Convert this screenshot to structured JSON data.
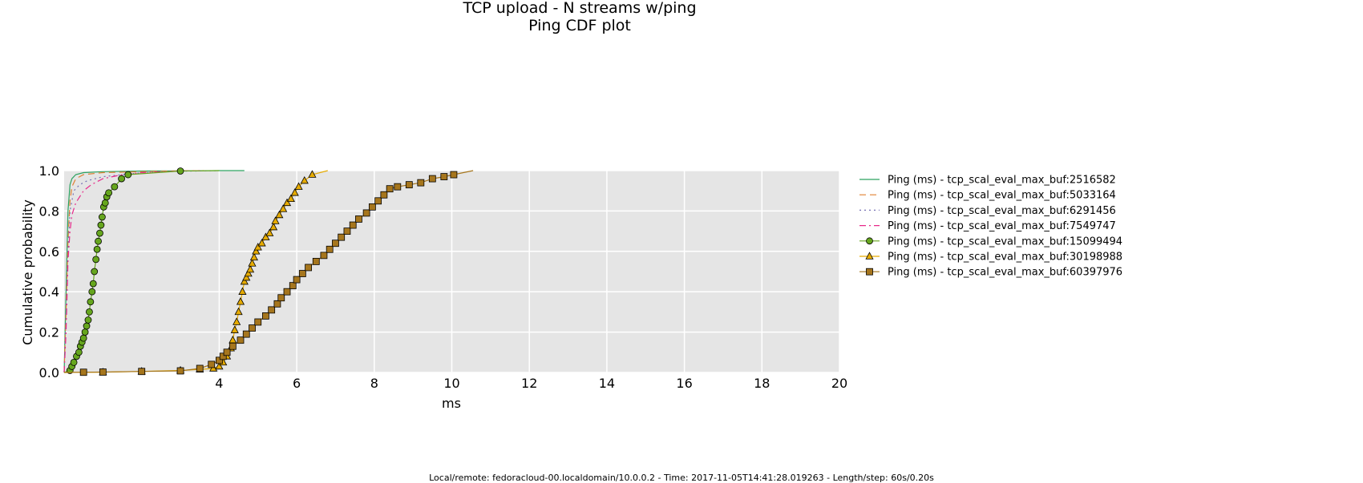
{
  "chart_data": {
    "type": "line",
    "title": "TCP upload - N streams w/ping",
    "subtitle": "Ping CDF plot",
    "xlabel": "ms",
    "ylabel": "Cumulative probability",
    "xlim": [
      0,
      20
    ],
    "ylim": [
      0,
      1
    ],
    "x_ticks": [
      "4",
      "6",
      "8",
      "10",
      "12",
      "14",
      "16",
      "18",
      "20"
    ],
    "y_ticks": [
      "0.0",
      "0.2",
      "0.4",
      "0.6",
      "0.8",
      "1.0"
    ],
    "grid": true,
    "legend_position": "right",
    "series": [
      {
        "name": "Ping (ms) - tcp_scal_eval_max_buf:2516582",
        "color": "#2ca25f",
        "dash": "solid",
        "marker": "none",
        "x": [
          0.0,
          0.05,
          0.1,
          0.15,
          0.2,
          0.3,
          0.5,
          1.0,
          2.0,
          3.0,
          4.0,
          4.65
        ],
        "y": [
          0.0,
          0.4,
          0.8,
          0.93,
          0.96,
          0.98,
          0.99,
          0.995,
          0.998,
          0.999,
          1.0,
          1.0
        ]
      },
      {
        "name": "Ping (ms) - tcp_scal_eval_max_buf:5033164",
        "color": "#e08030",
        "dash": "dashed",
        "marker": "none",
        "x": [
          0.0,
          0.05,
          0.1,
          0.15,
          0.2,
          0.3,
          0.5,
          1.0,
          2.0,
          3.0,
          3.6
        ],
        "y": [
          0.0,
          0.3,
          0.65,
          0.85,
          0.92,
          0.96,
          0.98,
          0.99,
          0.995,
          0.999,
          1.0
        ]
      },
      {
        "name": "Ping (ms) - tcp_scal_eval_max_buf:6291456",
        "color": "#7570b3",
        "dash": "dotted",
        "marker": "none",
        "x": [
          0.0,
          0.05,
          0.1,
          0.15,
          0.25,
          0.4,
          0.6,
          1.0,
          1.5,
          2.0,
          3.0,
          4.0
        ],
        "y": [
          0.0,
          0.3,
          0.6,
          0.8,
          0.9,
          0.93,
          0.95,
          0.97,
          0.98,
          0.99,
          0.997,
          1.0
        ]
      },
      {
        "name": "Ping (ms) - tcp_scal_eval_max_buf:7549747",
        "color": "#e7298a",
        "dash": "dashdot",
        "marker": "none",
        "x": [
          0.0,
          0.05,
          0.1,
          0.15,
          0.2,
          0.3,
          0.5,
          0.7,
          1.0,
          1.5,
          2.0,
          3.0,
          3.5
        ],
        "y": [
          0.0,
          0.2,
          0.55,
          0.7,
          0.78,
          0.84,
          0.9,
          0.93,
          0.96,
          0.98,
          0.99,
          0.998,
          1.0
        ]
      },
      {
        "name": "Ping (ms) - tcp_scal_eval_max_buf:15099494",
        "color": "#66a61e",
        "dash": "solid",
        "marker": "circle",
        "x": [
          0.0,
          0.15,
          0.2,
          0.25,
          0.32,
          0.38,
          0.42,
          0.46,
          0.5,
          0.54,
          0.58,
          0.62,
          0.65,
          0.68,
          0.72,
          0.75,
          0.78,
          0.82,
          0.85,
          0.88,
          0.92,
          0.95,
          0.98,
          1.02,
          1.06,
          1.1,
          1.15,
          1.3,
          1.48,
          1.65,
          3.0,
          4.0
        ],
        "y": [
          0.0,
          0.01,
          0.03,
          0.05,
          0.08,
          0.1,
          0.13,
          0.15,
          0.17,
          0.2,
          0.23,
          0.26,
          0.3,
          0.35,
          0.4,
          0.44,
          0.5,
          0.56,
          0.61,
          0.65,
          0.69,
          0.73,
          0.77,
          0.82,
          0.84,
          0.87,
          0.89,
          0.92,
          0.96,
          0.98,
          0.998,
          1.0
        ]
      },
      {
        "name": "Ping (ms) - tcp_scal_eval_max_buf:30198988",
        "color": "#e6ab02",
        "dash": "solid",
        "marker": "triangle",
        "x": [
          0.0,
          1.0,
          2.0,
          3.0,
          3.5,
          3.85,
          4.0,
          4.1,
          4.2,
          4.3,
          4.35,
          4.4,
          4.45,
          4.5,
          4.55,
          4.6,
          4.65,
          4.7,
          4.75,
          4.8,
          4.85,
          4.9,
          4.95,
          5.0,
          5.1,
          5.2,
          5.3,
          5.4,
          5.45,
          5.55,
          5.65,
          5.75,
          5.85,
          5.95,
          6.05,
          6.2,
          6.4,
          6.8
        ],
        "y": [
          0.0,
          0.001,
          0.005,
          0.01,
          0.015,
          0.02,
          0.03,
          0.05,
          0.08,
          0.12,
          0.16,
          0.21,
          0.25,
          0.3,
          0.35,
          0.4,
          0.45,
          0.47,
          0.49,
          0.51,
          0.54,
          0.57,
          0.6,
          0.62,
          0.64,
          0.67,
          0.69,
          0.72,
          0.75,
          0.78,
          0.81,
          0.84,
          0.86,
          0.89,
          0.92,
          0.95,
          0.98,
          1.0
        ]
      },
      {
        "name": "Ping (ms) - tcp_scal_eval_max_buf:60397976",
        "color": "#a6761d",
        "dash": "solid",
        "marker": "square",
        "x": [
          0.0,
          0.5,
          1.0,
          2.0,
          3.0,
          3.5,
          3.8,
          4.0,
          4.1,
          4.2,
          4.35,
          4.55,
          4.7,
          4.85,
          5.0,
          5.2,
          5.35,
          5.5,
          5.6,
          5.75,
          5.9,
          6.0,
          6.15,
          6.3,
          6.5,
          6.7,
          6.85,
          7.0,
          7.15,
          7.3,
          7.45,
          7.6,
          7.8,
          7.95,
          8.1,
          8.25,
          8.4,
          8.6,
          8.9,
          9.2,
          9.5,
          9.8,
          10.05,
          10.55
        ],
        "y": [
          0.0,
          0.001,
          0.002,
          0.005,
          0.008,
          0.02,
          0.04,
          0.06,
          0.08,
          0.1,
          0.13,
          0.16,
          0.19,
          0.22,
          0.25,
          0.28,
          0.31,
          0.34,
          0.37,
          0.4,
          0.43,
          0.46,
          0.49,
          0.52,
          0.55,
          0.58,
          0.61,
          0.64,
          0.67,
          0.7,
          0.73,
          0.76,
          0.79,
          0.82,
          0.85,
          0.88,
          0.91,
          0.92,
          0.93,
          0.94,
          0.96,
          0.97,
          0.98,
          1.0
        ]
      }
    ]
  },
  "footer": {
    "text": "Local/remote: fedoracloud-00.localdomain/10.0.0.2 - Time: 2017-11-05T14:41:28.019263 - Length/step: 60s/0.20s"
  }
}
